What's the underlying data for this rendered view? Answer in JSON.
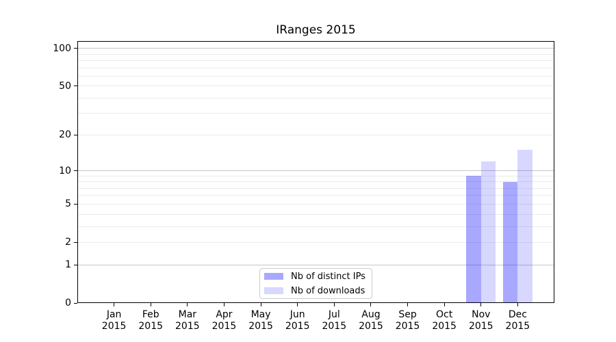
{
  "chart_data": {
    "type": "bar",
    "title": "IRanges 2015",
    "categories": [
      "Jan",
      "Feb",
      "Mar",
      "Apr",
      "May",
      "Jun",
      "Jul",
      "Aug",
      "Sep",
      "Oct",
      "Nov",
      "Dec"
    ],
    "category_year": "2015",
    "series": [
      {
        "name": "Nb of distinct IPs",
        "color": "rgba(0,0,255,0.34)",
        "values": [
          0,
          0,
          0,
          0,
          0,
          0,
          0,
          0,
          0,
          0,
          9,
          8
        ]
      },
      {
        "name": "Nb of downloads",
        "color": "rgba(0,0,255,0.155)",
        "values": [
          0,
          0,
          0,
          0,
          0,
          0,
          0,
          0,
          0,
          0,
          12,
          15
        ]
      }
    ],
    "y_axis": {
      "scale": "log1p",
      "tick_values": [
        0,
        1,
        2,
        5,
        10,
        20,
        50,
        100
      ],
      "major_gridline_values": [
        1,
        10,
        100
      ],
      "minor_gridline_values": [
        2,
        3,
        4,
        5,
        6,
        7,
        8,
        9,
        20,
        30,
        40,
        50,
        60,
        70,
        80,
        90
      ],
      "major_grid_color": "#c6c6c6",
      "minor_grid_color": "#ececec"
    },
    "ylim": [
      0,
      112
    ],
    "grid": true,
    "legend_position": "lower center",
    "spine_color": "#000000",
    "background_color": "#ffffff"
  }
}
